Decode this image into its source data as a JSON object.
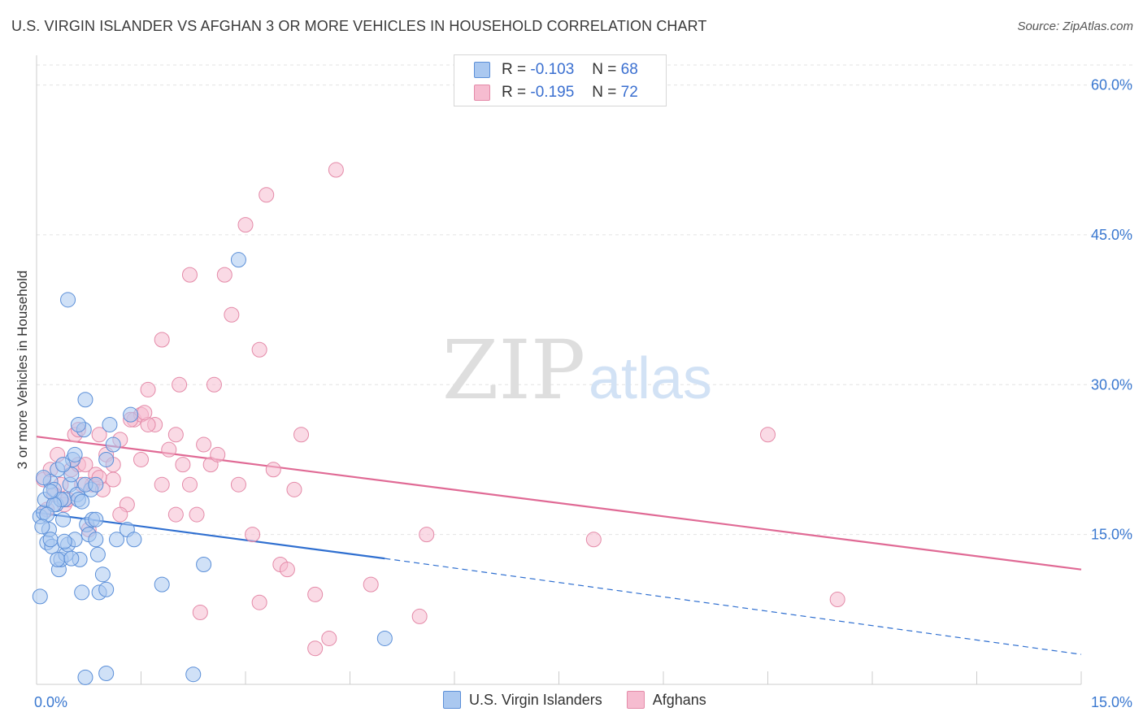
{
  "title": "U.S. VIRGIN ISLANDER VS AFGHAN 3 OR MORE VEHICLES IN HOUSEHOLD CORRELATION CHART",
  "source": "Source: ZipAtlas.com",
  "watermark": {
    "zip": "ZIP",
    "atlas": "atlas"
  },
  "colors": {
    "blue_fill": "#aac8f0",
    "blue_stroke": "#5b8fd8",
    "blue_line": "#2f6fd0",
    "pink_fill": "#f6bcd0",
    "pink_stroke": "#e48aa8",
    "pink_line": "#e06a95",
    "tick_label": "#3a78d0"
  },
  "legend": {
    "rows": [
      {
        "r_label": "R = ",
        "r_value": "-0.103",
        "n_label": "N = ",
        "n_value": "68"
      },
      {
        "r_label": "R = ",
        "r_value": "-0.195",
        "n_label": "N = ",
        "n_value": "72"
      }
    ]
  },
  "bottom_legend": {
    "series1": "U.S. Virgin Islanders",
    "series2": "Afghans"
  },
  "chart_data": {
    "type": "scatter",
    "title": "U.S. VIRGIN ISLANDER VS AFGHAN 3 OR MORE VEHICLES IN HOUSEHOLD CORRELATION CHART",
    "xlabel": "",
    "ylabel": "3 or more Vehicles in Household",
    "xlim": [
      0,
      15
    ],
    "ylim": [
      0,
      62
    ],
    "x_tick_labels": [
      "0.0%",
      "15.0%"
    ],
    "y_ticks": [
      15,
      30,
      45,
      60
    ],
    "y_tick_labels": [
      "15.0%",
      "30.0%",
      "45.0%",
      "60.0%"
    ],
    "grid": true,
    "legend_position": "top-center",
    "series": [
      {
        "name": "U.S. Virgin Islanders",
        "points": [
          [
            0.05,
            16.8
          ],
          [
            0.1,
            17.2
          ],
          [
            0.12,
            18.5
          ],
          [
            0.15,
            14.2
          ],
          [
            0.18,
            15.5
          ],
          [
            0.2,
            20.3
          ],
          [
            0.22,
            13.8
          ],
          [
            0.25,
            19.5
          ],
          [
            0.28,
            18.0
          ],
          [
            0.3,
            21.5
          ],
          [
            0.32,
            11.5
          ],
          [
            0.35,
            12.5
          ],
          [
            0.38,
            16.5
          ],
          [
            0.4,
            18.5
          ],
          [
            0.42,
            13.0
          ],
          [
            0.45,
            14.0
          ],
          [
            0.48,
            20.0
          ],
          [
            0.5,
            21.0
          ],
          [
            0.52,
            22.5
          ],
          [
            0.55,
            14.5
          ],
          [
            0.58,
            19.0
          ],
          [
            0.6,
            18.5
          ],
          [
            0.62,
            12.5
          ],
          [
            0.65,
            9.2
          ],
          [
            0.68,
            25.5
          ],
          [
            0.7,
            28.5
          ],
          [
            0.72,
            16.0
          ],
          [
            0.75,
            15.0
          ],
          [
            0.78,
            19.5
          ],
          [
            0.8,
            16.5
          ],
          [
            0.85,
            14.5
          ],
          [
            0.88,
            13.0
          ],
          [
            0.9,
            9.2
          ],
          [
            0.95,
            11.0
          ],
          [
            1.0,
            22.5
          ],
          [
            1.05,
            26.0
          ],
          [
            1.1,
            24.0
          ],
          [
            1.15,
            14.5
          ],
          [
            1.3,
            15.5
          ],
          [
            1.35,
            27.0
          ],
          [
            1.8,
            10.0
          ],
          [
            2.4,
            12.0
          ],
          [
            2.9,
            42.5
          ],
          [
            0.45,
            38.5
          ],
          [
            0.6,
            26.0
          ],
          [
            0.55,
            23.0
          ],
          [
            0.35,
            18.5
          ],
          [
            0.25,
            18.0
          ],
          [
            0.15,
            17.0
          ],
          [
            0.08,
            15.8
          ],
          [
            0.05,
            8.8
          ],
          [
            0.1,
            20.7
          ],
          [
            0.2,
            14.5
          ],
          [
            0.3,
            12.5
          ],
          [
            0.4,
            14.3
          ],
          [
            0.5,
            12.6
          ],
          [
            0.65,
            18.3
          ],
          [
            0.7,
            20.0
          ],
          [
            0.85,
            16.5
          ],
          [
            1.0,
            9.5
          ],
          [
            1.4,
            14.5
          ],
          [
            0.7,
            0.7
          ],
          [
            1.0,
            1.1
          ],
          [
            2.25,
            1.0
          ],
          [
            5.0,
            4.6
          ],
          [
            0.85,
            20.0
          ],
          [
            0.2,
            19.3
          ],
          [
            0.38,
            22.0
          ]
        ]
      },
      {
        "name": "Afghans",
        "points": [
          [
            0.1,
            20.5
          ],
          [
            0.2,
            21.5
          ],
          [
            0.3,
            23.0
          ],
          [
            0.35,
            20.0
          ],
          [
            0.4,
            18.0
          ],
          [
            0.5,
            21.5
          ],
          [
            0.55,
            25.0
          ],
          [
            0.6,
            22.0
          ],
          [
            0.7,
            22.0
          ],
          [
            0.8,
            20.0
          ],
          [
            0.9,
            25.0
          ],
          [
            1.0,
            23.0
          ],
          [
            1.1,
            20.5
          ],
          [
            1.2,
            24.5
          ],
          [
            1.3,
            18.0
          ],
          [
            1.4,
            26.5
          ],
          [
            1.5,
            27.0
          ],
          [
            1.6,
            29.5
          ],
          [
            1.7,
            26.0
          ],
          [
            1.8,
            34.5
          ],
          [
            1.9,
            23.5
          ],
          [
            2.0,
            25.0
          ],
          [
            2.1,
            22.0
          ],
          [
            2.2,
            20.0
          ],
          [
            2.3,
            17.0
          ],
          [
            2.4,
            24.0
          ],
          [
            2.5,
            22.0
          ],
          [
            2.6,
            23.0
          ],
          [
            2.7,
            41.0
          ],
          [
            2.8,
            37.0
          ],
          [
            2.9,
            20.0
          ],
          [
            3.0,
            46.0
          ],
          [
            3.1,
            15.0
          ],
          [
            3.2,
            33.5
          ],
          [
            3.3,
            49.0
          ],
          [
            3.4,
            21.5
          ],
          [
            3.5,
            12.0
          ],
          [
            3.7,
            19.5
          ],
          [
            3.8,
            25.0
          ],
          [
            4.0,
            9.0
          ],
          [
            4.3,
            51.5
          ],
          [
            4.8,
            10.0
          ],
          [
            5.5,
            6.8
          ],
          [
            5.6,
            15.0
          ],
          [
            8.0,
            14.5
          ],
          [
            10.5,
            25.0
          ],
          [
            11.5,
            8.5
          ],
          [
            2.2,
            41.0
          ],
          [
            1.8,
            20.0
          ],
          [
            1.5,
            22.5
          ],
          [
            1.2,
            17.0
          ],
          [
            0.95,
            19.5
          ],
          [
            0.85,
            21.0
          ],
          [
            0.75,
            15.5
          ],
          [
            0.65,
            20.0
          ],
          [
            0.45,
            18.5
          ],
          [
            0.25,
            19.0
          ],
          [
            0.15,
            17.5
          ],
          [
            1.6,
            26.0
          ],
          [
            1.35,
            26.5
          ],
          [
            2.35,
            7.2
          ],
          [
            3.2,
            8.2
          ],
          [
            3.6,
            11.5
          ],
          [
            4.2,
            4.6
          ],
          [
            4.0,
            3.6
          ],
          [
            2.05,
            30.0
          ],
          [
            2.55,
            30.0
          ],
          [
            1.55,
            27.2
          ],
          [
            2.0,
            17.0
          ],
          [
            1.1,
            22.0
          ],
          [
            0.6,
            25.5
          ],
          [
            0.9,
            20.7
          ]
        ]
      }
    ],
    "trend_lines": [
      {
        "series": "U.S. Virgin Islanders",
        "x_start": 0,
        "y_start": 17.2,
        "x_end": 5.0,
        "y_end": 12.6,
        "dashed_to_x": 15,
        "dashed_to_y": 3.0
      },
      {
        "series": "Afghans",
        "x_start": 0,
        "y_start": 24.8,
        "x_end": 15,
        "y_end": 11.5
      }
    ]
  }
}
